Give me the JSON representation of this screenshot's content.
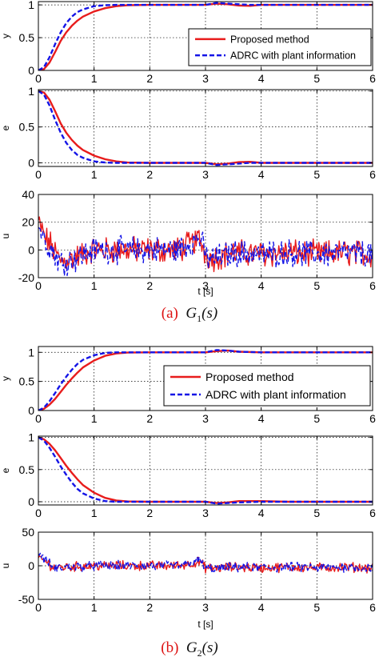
{
  "colors": {
    "proposed": "#e81c1c",
    "adrc": "#1414e6",
    "axis": "#000000",
    "grid": "#000000"
  },
  "chart_data": [
    {
      "panel": "a",
      "caption": {
        "tag": "(a)",
        "func": "G",
        "sub": "1",
        "arg": "(s)"
      },
      "legend": {
        "placement": "inside-right",
        "entries": [
          "Proposed method",
          "ADRC with plant information"
        ]
      },
      "xlabel": "t [s]",
      "xlim": [
        0,
        6
      ],
      "xticks": [
        0,
        1,
        2,
        3,
        4,
        5,
        6
      ],
      "grid": true,
      "subplots": [
        {
          "type": "line",
          "ylabel": "y",
          "ylim": [
            0,
            1.05
          ],
          "yticks": [
            0,
            0.5,
            1
          ],
          "series": [
            {
              "name": "Proposed method",
              "x": [
                0,
                0.1,
                0.2,
                0.3,
                0.4,
                0.5,
                0.6,
                0.7,
                0.8,
                1.0,
                1.2,
                1.4,
                1.6,
                2.0,
                2.5,
                3.0,
                3.2,
                3.4,
                3.6,
                3.8,
                4.0,
                4.5,
                5.0,
                5.5,
                6.0
              ],
              "y": [
                0,
                0.02,
                0.12,
                0.28,
                0.45,
                0.58,
                0.68,
                0.76,
                0.82,
                0.9,
                0.95,
                0.98,
                0.995,
                1.0,
                1.0,
                1.0,
                1.02,
                1.01,
                0.99,
                0.985,
                1.0,
                1.0,
                1.0,
                1.0,
                1.0
              ]
            },
            {
              "name": "ADRC with plant information",
              "x": [
                0,
                0.1,
                0.2,
                0.3,
                0.4,
                0.5,
                0.6,
                0.7,
                0.8,
                1.0,
                1.2,
                1.4,
                2.0,
                2.5,
                3.0,
                3.2,
                3.4,
                3.6,
                3.8,
                4.0,
                4.5,
                5.0,
                5.5,
                6.0
              ],
              "y": [
                0,
                0.05,
                0.2,
                0.4,
                0.58,
                0.72,
                0.82,
                0.89,
                0.93,
                0.98,
                0.995,
                1.0,
                1.0,
                1.0,
                1.0,
                1.03,
                1.02,
                1.01,
                1.0,
                1.0,
                1.0,
                1.0,
                1.0,
                1.0
              ]
            }
          ]
        },
        {
          "type": "line",
          "ylabel": "e",
          "ylim": [
            -0.05,
            1.02
          ],
          "yticks": [
            0,
            0.5,
            1
          ],
          "series": [
            {
              "name": "Proposed method",
              "x": [
                0,
                0.1,
                0.2,
                0.3,
                0.4,
                0.5,
                0.6,
                0.7,
                0.8,
                1.0,
                1.2,
                1.4,
                1.6,
                2.0,
                2.5,
                3.0,
                3.2,
                3.4,
                3.6,
                3.8,
                4.0,
                4.5,
                5.0,
                5.5,
                6.0
              ],
              "y": [
                1,
                0.98,
                0.88,
                0.72,
                0.55,
                0.42,
                0.32,
                0.24,
                0.18,
                0.1,
                0.05,
                0.02,
                0.005,
                0,
                0,
                0,
                -0.02,
                -0.01,
                0.01,
                0.015,
                0,
                0,
                0,
                0,
                0
              ]
            },
            {
              "name": "ADRC with plant information",
              "x": [
                0,
                0.1,
                0.2,
                0.3,
                0.4,
                0.5,
                0.6,
                0.7,
                0.8,
                1.0,
                1.2,
                1.4,
                2.0,
                2.5,
                3.0,
                3.2,
                3.4,
                3.6,
                3.8,
                4.0,
                4.5,
                5.0,
                5.5,
                6.0
              ],
              "y": [
                1,
                0.95,
                0.8,
                0.6,
                0.42,
                0.28,
                0.18,
                0.11,
                0.07,
                0.02,
                0.005,
                0,
                0,
                0,
                0,
                -0.03,
                -0.02,
                -0.01,
                0,
                0,
                0,
                0,
                0,
                0
              ]
            }
          ]
        },
        {
          "type": "line",
          "ylabel": "u",
          "ylim": [
            -20,
            40
          ],
          "yticks": [
            -20,
            0,
            20,
            40
          ],
          "series": [
            {
              "name": "Proposed method",
              "x": [
                0,
                0.1,
                0.2,
                0.3,
                0.4,
                0.6,
                1.0,
                1.5,
                2.0,
                2.5,
                2.9,
                3.0,
                3.1,
                3.5,
                4.0,
                4.5,
                5.0,
                5.5,
                6.0
              ],
              "y": [
                22,
                10,
                5,
                -2,
                -8,
                -6,
                0,
                0,
                0,
                0,
                8,
                -3,
                -6,
                -2,
                -3,
                -2,
                -3,
                -2,
                -3
              ]
            },
            {
              "name": "ADRC with plant information",
              "x": [
                0,
                0.1,
                0.2,
                0.3,
                0.4,
                0.6,
                1.0,
                1.5,
                2.0,
                2.5,
                2.9,
                3.0,
                3.1,
                3.5,
                4.0,
                4.5,
                5.0,
                5.5,
                6.0
              ],
              "y": [
                18,
                8,
                3,
                -4,
                -9,
                -7,
                0,
                0,
                0,
                0,
                9,
                -4,
                -7,
                -2,
                -3,
                -2,
                -3,
                -2,
                -3
              ]
            }
          ],
          "noise_amplitude": 8
        }
      ]
    },
    {
      "panel": "b",
      "caption": {
        "tag": "(b)",
        "func": "G",
        "sub": "2",
        "arg": "(s)"
      },
      "legend": {
        "placement": "inside-right",
        "entries": [
          "Proposed method",
          "ADRC with plant information"
        ]
      },
      "xlabel": "t [s]",
      "xlim": [
        0,
        6
      ],
      "xticks": [
        0,
        1,
        2,
        3,
        4,
        5,
        6
      ],
      "grid": true,
      "subplots": [
        {
          "type": "line",
          "ylabel": "y",
          "ylim": [
            0,
            1.1
          ],
          "yticks": [
            0,
            0.5,
            1
          ],
          "series": [
            {
              "name": "Proposed method",
              "x": [
                0,
                0.1,
                0.2,
                0.3,
                0.4,
                0.5,
                0.6,
                0.7,
                0.8,
                1.0,
                1.2,
                1.4,
                1.6,
                2.0,
                2.5,
                3.0,
                3.2,
                3.4,
                3.6,
                4.0,
                4.5,
                5.0,
                5.5,
                6.0
              ],
              "y": [
                0,
                0.03,
                0.1,
                0.2,
                0.32,
                0.44,
                0.55,
                0.65,
                0.74,
                0.86,
                0.94,
                0.98,
                0.995,
                1.0,
                1.0,
                1.0,
                1.02,
                1.03,
                1.01,
                1.0,
                1.0,
                1.0,
                1.0,
                1.0
              ]
            },
            {
              "name": "ADRC with plant information",
              "x": [
                0,
                0.1,
                0.2,
                0.3,
                0.4,
                0.5,
                0.6,
                0.7,
                0.8,
                1.0,
                1.2,
                1.4,
                2.0,
                2.5,
                3.0,
                3.2,
                3.4,
                3.6,
                4.0,
                4.5,
                5.0,
                5.5,
                6.0
              ],
              "y": [
                0,
                0.05,
                0.16,
                0.3,
                0.45,
                0.58,
                0.7,
                0.8,
                0.87,
                0.95,
                0.99,
                1.0,
                1.0,
                1.0,
                1.0,
                1.04,
                1.03,
                1.01,
                1.0,
                1.0,
                1.0,
                1.0,
                1.0
              ]
            }
          ]
        },
        {
          "type": "line",
          "ylabel": "e",
          "ylim": [
            -0.05,
            1.02
          ],
          "yticks": [
            0,
            0.5,
            1
          ],
          "series": [
            {
              "name": "Proposed method",
              "x": [
                0,
                0.1,
                0.2,
                0.3,
                0.4,
                0.5,
                0.6,
                0.7,
                0.8,
                1.0,
                1.2,
                1.4,
                1.6,
                2.0,
                2.5,
                3.0,
                3.2,
                3.4,
                3.6,
                4.0,
                4.5,
                5.0,
                5.5,
                6.0
              ],
              "y": [
                1,
                0.97,
                0.9,
                0.8,
                0.68,
                0.56,
                0.45,
                0.35,
                0.26,
                0.14,
                0.06,
                0.02,
                0.005,
                0,
                0,
                0,
                -0.02,
                -0.01,
                0.01,
                0.01,
                0,
                0,
                0,
                0
              ]
            },
            {
              "name": "ADRC with plant information",
              "x": [
                0,
                0.1,
                0.2,
                0.3,
                0.4,
                0.5,
                0.6,
                0.7,
                0.8,
                1.0,
                1.2,
                1.4,
                2.0,
                2.5,
                3.0,
                3.2,
                3.4,
                3.6,
                4.0,
                4.5,
                5.0,
                5.5,
                6.0
              ],
              "y": [
                1,
                0.95,
                0.84,
                0.7,
                0.55,
                0.42,
                0.3,
                0.2,
                0.13,
                0.05,
                0.01,
                0,
                0,
                0,
                0,
                -0.03,
                -0.02,
                -0.01,
                0,
                0,
                0,
                0,
                0
              ]
            }
          ]
        },
        {
          "type": "line",
          "ylabel": "u",
          "ylim": [
            -50,
            50
          ],
          "yticks": [
            -50,
            0,
            50
          ],
          "series": [
            {
              "name": "Proposed method",
              "x": [
                0,
                0.1,
                0.2,
                0.3,
                0.5,
                1.0,
                1.5,
                2.0,
                2.5,
                2.9,
                3.0,
                3.1,
                3.5,
                4.0,
                4.5,
                5.0,
                5.5,
                6.0
              ],
              "y": [
                12,
                8,
                2,
                -3,
                -2,
                0,
                0,
                0,
                0,
                6,
                -3,
                -4,
                -2,
                -3,
                -2,
                -3,
                -2,
                -3
              ]
            },
            {
              "name": "ADRC with plant information",
              "x": [
                0,
                0.1,
                0.2,
                0.3,
                0.5,
                1.0,
                1.5,
                2.0,
                2.5,
                2.9,
                3.0,
                3.1,
                3.5,
                4.0,
                4.5,
                5.0,
                5.5,
                6.0
              ],
              "y": [
                20,
                10,
                3,
                -4,
                -2,
                0,
                0,
                0,
                0,
                8,
                -4,
                -5,
                -2,
                -3,
                -2,
                -3,
                -2,
                -3
              ]
            }
          ],
          "noise_amplitude": 6
        }
      ]
    }
  ]
}
